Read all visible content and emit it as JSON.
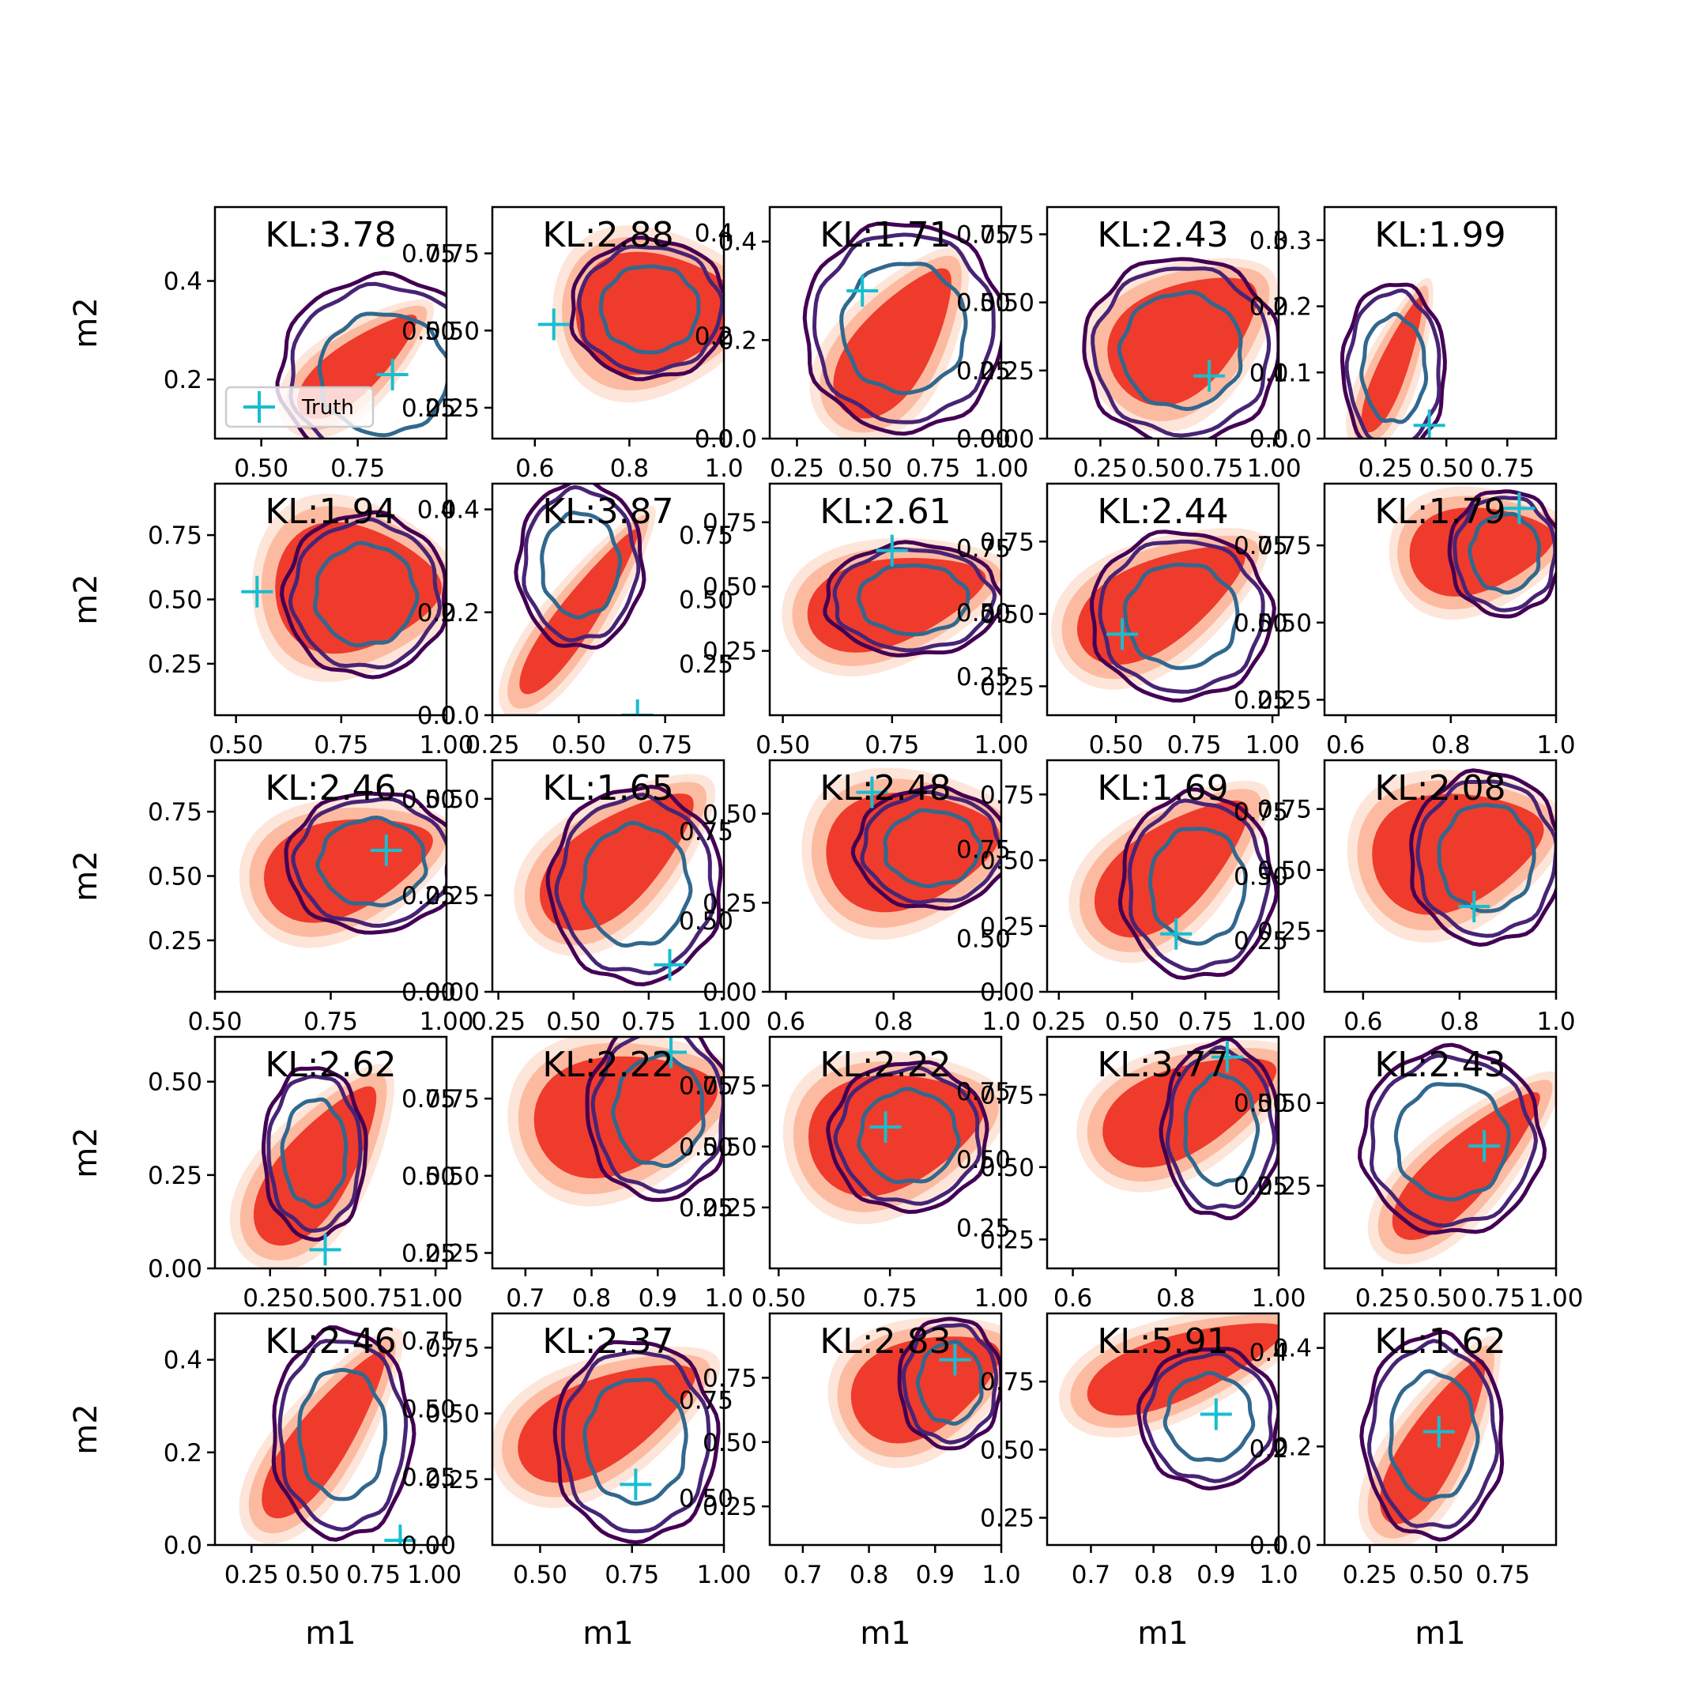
{
  "colors": {
    "posterior_fill": [
      "#fee5d9",
      "#fcbba1",
      "#ef3b2c",
      "#cb181d"
    ],
    "truth_contours": [
      "#440154",
      "#482475",
      "#31688e"
    ],
    "truth_marker": "#17becf",
    "axes": "#000000"
  },
  "chart_data": {
    "type": "contour-grid",
    "rows": 5,
    "cols": 5,
    "xlabel": "m1",
    "ylabel": "m2",
    "legend": {
      "label": "Truth",
      "marker": "+",
      "placement": "lower-left of first panel"
    },
    "panels": [
      {
        "kl": "KL:3.78",
        "xticks": [
          "0.50",
          "0.75"
        ],
        "xlim": [
          0.38,
          0.98
        ],
        "yticks": [
          "0.2",
          "0.4"
        ],
        "ylim": [
          0.08,
          0.55
        ],
        "rticks": [
          "0.25",
          "0.50",
          "0.75"
        ],
        "rlim": [
          0.15,
          0.9
        ],
        "truth": [
          0.84,
          0.21
        ],
        "fill": {
          "cx": 0.62,
          "cy": 0.32,
          "angle": -40,
          "rx": 0.36,
          "ry": 0.12
        },
        "ring": {
          "cx": 0.73,
          "cy": 0.28,
          "rx": 0.45,
          "ry": 0.42
        }
      },
      {
        "kl": "KL:2.88",
        "xticks": [
          "0.6",
          "0.8",
          "1.0"
        ],
        "xlim": [
          0.51,
          1.0
        ],
        "yticks": [
          "0.25",
          "0.50",
          "0.75"
        ],
        "ylim": [
          0.15,
          0.9
        ],
        "rticks": [
          "0.0",
          "0.2",
          "0.4"
        ],
        "rlim": [
          0.0,
          0.45
        ],
        "truth": [
          0.64,
          0.52
        ],
        "fill": {
          "cx": 0.72,
          "cy": 0.55,
          "angle": -5,
          "rx": 0.4,
          "ry": 0.28
        },
        "ring": {
          "cx": 0.68,
          "cy": 0.56,
          "rx": 0.34,
          "ry": 0.3
        }
      },
      {
        "kl": "KL:1.71",
        "xticks": [
          "0.25",
          "0.50",
          "0.75",
          "1.00"
        ],
        "xlim": [
          0.15,
          1.0
        ],
        "yticks": [
          "0.0",
          "0.2",
          "0.4"
        ],
        "ylim": [
          0.0,
          0.47
        ],
        "rticks": [
          "0.00",
          "0.25",
          "0.50",
          "0.75"
        ],
        "rlim": [
          0.0,
          0.85
        ],
        "truth": [
          0.49,
          0.3
        ],
        "fill": {
          "cx": 0.55,
          "cy": 0.42,
          "angle": -55,
          "rx": 0.42,
          "ry": 0.18
        },
        "ring": {
          "cx": 0.58,
          "cy": 0.48,
          "rx": 0.43,
          "ry": 0.45
        }
      },
      {
        "kl": "KL:2.43",
        "xticks": [
          "0.25",
          "0.50",
          "0.75",
          "1.00"
        ],
        "xlim": [
          0.02,
          1.02
        ],
        "yticks": [
          "0.00",
          "0.25",
          "0.50",
          "0.75"
        ],
        "ylim": [
          0.0,
          0.85
        ],
        "rticks": [
          "0.0",
          "0.1",
          "0.2",
          "0.3"
        ],
        "rlim": [
          0.0,
          0.35
        ],
        "truth": [
          0.72,
          0.23
        ],
        "fill": {
          "cx": 0.6,
          "cy": 0.45,
          "angle": -35,
          "rx": 0.4,
          "ry": 0.25
        },
        "ring": {
          "cx": 0.58,
          "cy": 0.38,
          "rx": 0.42,
          "ry": 0.4
        }
      },
      {
        "kl": "KL:1.99",
        "xticks": [
          "0.25",
          "0.50",
          "0.75"
        ],
        "xlim": [
          0.0,
          0.95
        ],
        "yticks": [
          "0.0",
          "0.1",
          "0.2",
          "0.3"
        ],
        "ylim": [
          0.0,
          0.35
        ],
        "rticks": [],
        "rlim": [
          0,
          1
        ],
        "truth": [
          0.43,
          0.02
        ],
        "fill": {
          "cx": 0.3,
          "cy": 0.32,
          "angle": -68,
          "rx": 0.35,
          "ry": 0.07
        },
        "ring": {
          "cx": 0.3,
          "cy": 0.3,
          "rx": 0.22,
          "ry": 0.37
        }
      },
      {
        "kl": "KL:1.94",
        "xticks": [
          "0.50",
          "0.75",
          "1.00"
        ],
        "xlim": [
          0.45,
          1.0
        ],
        "yticks": [
          "0.25",
          "0.50",
          "0.75"
        ],
        "ylim": [
          0.05,
          0.95
        ],
        "rticks": [
          "0.0",
          "0.2",
          "0.4"
        ],
        "rlim": [
          0.0,
          0.45
        ],
        "truth": [
          0.55,
          0.53
        ],
        "fill": {
          "cx": 0.62,
          "cy": 0.55,
          "angle": 0,
          "rx": 0.4,
          "ry": 0.3
        },
        "ring": {
          "cx": 0.65,
          "cy": 0.52,
          "rx": 0.35,
          "ry": 0.35
        }
      },
      {
        "kl": "KL:3.87",
        "xticks": [
          "0.25",
          "0.50",
          "0.75"
        ],
        "xlim": [
          0.25,
          0.92
        ],
        "yticks": [
          "0.0",
          "0.2",
          "0.4"
        ],
        "ylim": [
          0.0,
          0.45
        ],
        "rticks": [
          "0.25",
          "0.50",
          "0.75"
        ],
        "rlim": [
          0.05,
          0.95
        ],
        "truth": [
          0.67,
          0.0
        ],
        "fill": {
          "cx": 0.38,
          "cy": 0.45,
          "angle": -55,
          "rx": 0.48,
          "ry": 0.09
        },
        "ring": {
          "cx": 0.38,
          "cy": 0.65,
          "rx": 0.27,
          "ry": 0.36
        }
      },
      {
        "kl": "KL:2.61",
        "xticks": [
          "0.50",
          "0.75",
          "1.00"
        ],
        "xlim": [
          0.47,
          1.0
        ],
        "yticks": [
          "0.25",
          "0.50",
          "0.75"
        ],
        "ylim": [
          0.0,
          0.9
        ],
        "rticks": [
          "0.25",
          "0.50",
          "0.75"
        ],
        "rlim": [
          0.1,
          1.0
        ],
        "truth": [
          0.75,
          0.64
        ],
        "fill": {
          "cx": 0.55,
          "cy": 0.5,
          "angle": -15,
          "rx": 0.44,
          "ry": 0.2
        },
        "ring": {
          "cx": 0.62,
          "cy": 0.5,
          "rx": 0.38,
          "ry": 0.24
        }
      },
      {
        "kl": "KL:2.44",
        "xticks": [
          "0.50",
          "0.75",
          "1.00"
        ],
        "xlim": [
          0.28,
          1.02
        ],
        "yticks": [
          "0.25",
          "0.50",
          "0.75"
        ],
        "ylim": [
          0.15,
          0.95
        ],
        "rticks": [
          "0.25",
          "0.50",
          "0.75"
        ],
        "rlim": [
          0.2,
          0.95
        ],
        "truth": [
          0.52,
          0.43
        ],
        "fill": {
          "cx": 0.5,
          "cy": 0.5,
          "angle": -30,
          "rx": 0.45,
          "ry": 0.2
        },
        "ring": {
          "cx": 0.58,
          "cy": 0.43,
          "rx": 0.39,
          "ry": 0.36
        }
      },
      {
        "kl": "KL:1.79",
        "xticks": [
          "0.6",
          "0.8",
          "1.0"
        ],
        "xlim": [
          0.56,
          1.0
        ],
        "yticks": [
          "0.25",
          "0.50",
          "0.75"
        ],
        "ylim": [
          0.2,
          0.95
        ],
        "rticks": [],
        "rlim": [
          0,
          1
        ],
        "truth": [
          0.93,
          0.87
        ],
        "fill": {
          "cx": 0.68,
          "cy": 0.72,
          "angle": -10,
          "rx": 0.35,
          "ry": 0.2
        },
        "ring": {
          "cx": 0.78,
          "cy": 0.7,
          "rx": 0.24,
          "ry": 0.27
        }
      },
      {
        "kl": "KL:2.46",
        "xticks": [
          "0.50",
          "0.75",
          "1.00"
        ],
        "xlim": [
          0.5,
          1.0
        ],
        "yticks": [
          "0.25",
          "0.50",
          "0.75"
        ],
        "ylim": [
          0.05,
          0.95
        ],
        "rticks": [
          "0.00",
          "0.25",
          "0.50"
        ],
        "rlim": [
          0.0,
          0.6
        ],
        "truth": [
          0.87,
          0.6
        ],
        "fill": {
          "cx": 0.58,
          "cy": 0.55,
          "angle": -18,
          "rx": 0.42,
          "ry": 0.22
        },
        "ring": {
          "cx": 0.68,
          "cy": 0.56,
          "rx": 0.37,
          "ry": 0.3
        }
      },
      {
        "kl": "KL:1.65",
        "xticks": [
          "0.25",
          "0.50",
          "0.75",
          "1.00"
        ],
        "xlim": [
          0.23,
          1.0
        ],
        "yticks": [
          "0.00",
          "0.25",
          "0.50"
        ],
        "ylim": [
          0.0,
          0.6
        ],
        "rticks": [
          "0.50",
          "0.75"
        ],
        "rlim": [
          0.3,
          0.95
        ],
        "truth": [
          0.82,
          0.07
        ],
        "fill": {
          "cx": 0.55,
          "cy": 0.58,
          "angle": -40,
          "rx": 0.45,
          "ry": 0.2
        },
        "ring": {
          "cx": 0.62,
          "cy": 0.46,
          "rx": 0.37,
          "ry": 0.42
        }
      },
      {
        "kl": "KL:2.48",
        "xticks": [
          "0.6",
          "0.8",
          "1.0"
        ],
        "xlim": [
          0.57,
          1.0
        ],
        "yticks": [
          "0.00",
          "0.25",
          "0.50"
        ],
        "ylim": [
          0.0,
          0.65
        ],
        "rticks": [
          "0.50",
          "0.75"
        ],
        "rlim": [
          0.35,
          1.0
        ],
        "truth": [
          0.76,
          0.56
        ],
        "fill": {
          "cx": 0.62,
          "cy": 0.62,
          "angle": -10,
          "rx": 0.42,
          "ry": 0.27
        },
        "ring": {
          "cx": 0.7,
          "cy": 0.62,
          "rx": 0.33,
          "ry": 0.26
        }
      },
      {
        "kl": "KL:1.69",
        "xticks": [
          "0.25",
          "0.50",
          "0.75",
          "1.00"
        ],
        "xlim": [
          0.21,
          1.0
        ],
        "yticks": [
          "0.00",
          "0.25",
          "0.50",
          "0.75"
        ],
        "ylim": [
          0.0,
          0.88
        ],
        "rticks": [
          "0.25",
          "0.50",
          "0.75"
        ],
        "rlim": [
          0.05,
          0.95
        ],
        "truth": [
          0.65,
          0.22
        ],
        "fill": {
          "cx": 0.55,
          "cy": 0.55,
          "angle": -40,
          "rx": 0.45,
          "ry": 0.2
        },
        "ring": {
          "cx": 0.65,
          "cy": 0.46,
          "rx": 0.33,
          "ry": 0.4
        }
      },
      {
        "kl": "KL:2.08",
        "xticks": [
          "0.6",
          "0.8",
          "1.0"
        ],
        "xlim": [
          0.52,
          1.0
        ],
        "yticks": [
          "0.25",
          "0.50",
          "0.75"
        ],
        "ylim": [
          0.0,
          0.95
        ],
        "rticks": [],
        "rlim": [
          0,
          1
        ],
        "truth": [
          0.83,
          0.35
        ],
        "fill": {
          "cx": 0.58,
          "cy": 0.62,
          "angle": -15,
          "rx": 0.42,
          "ry": 0.27
        },
        "ring": {
          "cx": 0.7,
          "cy": 0.58,
          "rx": 0.33,
          "ry": 0.37
        }
      },
      {
        "kl": "KL:2.62",
        "xticks": [
          "0.25",
          "0.50",
          "0.75",
          "1.00"
        ],
        "xlim": [
          0.0,
          1.05
        ],
        "yticks": [
          "0.00",
          "0.25",
          "0.50"
        ],
        "ylim": [
          0.0,
          0.62
        ],
        "rticks": [
          "0.25",
          "0.50",
          "0.75"
        ],
        "rlim": [
          0.2,
          0.95
        ],
        "truth": [
          0.5,
          0.05
        ],
        "fill": {
          "cx": 0.45,
          "cy": 0.45,
          "angle": -55,
          "rx": 0.45,
          "ry": 0.17
        },
        "ring": {
          "cx": 0.43,
          "cy": 0.5,
          "rx": 0.22,
          "ry": 0.37
        }
      },
      {
        "kl": "KL:2.22",
        "xticks": [
          "0.7",
          "0.8",
          "0.9",
          "1.0"
        ],
        "xlim": [
          0.65,
          1.0
        ],
        "yticks": [
          "0.25",
          "0.50",
          "0.75"
        ],
        "ylim": [
          0.2,
          0.95
        ],
        "rticks": [
          "0.25",
          "0.50",
          "0.75"
        ],
        "rlim": [
          0.0,
          0.95
        ],
        "truth": [
          0.92,
          0.9
        ],
        "fill": {
          "cx": 0.58,
          "cy": 0.68,
          "angle": -15,
          "rx": 0.45,
          "ry": 0.27
        },
        "ring": {
          "cx": 0.72,
          "cy": 0.68,
          "rx": 0.31,
          "ry": 0.38
        }
      },
      {
        "kl": "KL:2.22",
        "xticks": [
          "0.50",
          "0.75",
          "1.00"
        ],
        "xlim": [
          0.48,
          1.0
        ],
        "yticks": [
          "0.25",
          "0.50",
          "0.75"
        ],
        "ylim": [
          0.0,
          0.95
        ],
        "rticks": [
          "0.25",
          "0.50",
          "0.75"
        ],
        "rlim": [
          0.1,
          0.95
        ],
        "truth": [
          0.74,
          0.58
        ],
        "fill": {
          "cx": 0.55,
          "cy": 0.6,
          "angle": -15,
          "rx": 0.43,
          "ry": 0.27
        },
        "ring": {
          "cx": 0.6,
          "cy": 0.57,
          "rx": 0.34,
          "ry": 0.32
        }
      },
      {
        "kl": "KL:3.77",
        "xticks": [
          "0.6",
          "0.8",
          "1.00"
        ],
        "xlim": [
          0.55,
          1.0
        ],
        "yticks": [
          "0.25",
          "0.50",
          "0.75"
        ],
        "ylim": [
          0.15,
          0.95
        ],
        "rticks": [
          "0.25",
          "0.50"
        ],
        "rlim": [
          0.0,
          0.7
        ],
        "truth": [
          0.9,
          0.88
        ],
        "fill": {
          "cx": 0.62,
          "cy": 0.7,
          "angle": -25,
          "rx": 0.45,
          "ry": 0.2
        },
        "ring": {
          "cx": 0.75,
          "cy": 0.6,
          "rx": 0.25,
          "ry": 0.38
        }
      },
      {
        "kl": "KL:2.43",
        "xticks": [
          "0.25",
          "0.50",
          "0.75",
          "1.00"
        ],
        "xlim": [
          0.0,
          1.0
        ],
        "yticks": [
          "0.25",
          "0.50"
        ],
        "ylim": [
          0.0,
          0.7
        ],
        "rticks": [],
        "rlim": [
          0,
          1
        ],
        "truth": [
          0.69,
          0.37
        ],
        "fill": {
          "cx": 0.62,
          "cy": 0.45,
          "angle": -45,
          "rx": 0.48,
          "ry": 0.14
        },
        "ring": {
          "cx": 0.55,
          "cy": 0.55,
          "rx": 0.39,
          "ry": 0.4
        }
      },
      {
        "kl": "KL:2.46",
        "xticks": [
          "0.25",
          "0.50",
          "0.75",
          "1.00"
        ],
        "xlim": [
          0.1,
          1.05
        ],
        "yticks": [
          "0.0",
          "0.2",
          "0.4"
        ],
        "ylim": [
          0.0,
          0.5
        ],
        "rticks": [
          "0.00",
          "0.25",
          "0.50",
          "0.75"
        ],
        "rlim": [
          0.0,
          0.85
        ],
        "truth": [
          0.86,
          0.01
        ],
        "fill": {
          "cx": 0.48,
          "cy": 0.48,
          "angle": -55,
          "rx": 0.48,
          "ry": 0.13
        },
        "ring": {
          "cx": 0.55,
          "cy": 0.48,
          "rx": 0.3,
          "ry": 0.45
        }
      },
      {
        "kl": "KL:2.37",
        "xticks": [
          "0.50",
          "0.75",
          "1.00"
        ],
        "xlim": [
          0.37,
          1.0
        ],
        "yticks": [
          "0.25",
          "0.50",
          "0.75"
        ],
        "ylim": [
          0.0,
          0.88
        ],
        "rticks": [
          "0.50",
          "0.75"
        ],
        "rlim": [
          0.38,
          0.97
        ],
        "truth": [
          0.76,
          0.23
        ],
        "fill": {
          "cx": 0.5,
          "cy": 0.55,
          "angle": -28,
          "rx": 0.47,
          "ry": 0.2
        },
        "ring": {
          "cx": 0.62,
          "cy": 0.45,
          "rx": 0.35,
          "ry": 0.43
        }
      },
      {
        "kl": "KL:2.83",
        "xticks": [
          "0.7",
          "0.8",
          "0.9",
          "1.0"
        ],
        "xlim": [
          0.65,
          1.0
        ],
        "yticks": [
          "0.25",
          "0.50",
          "0.75"
        ],
        "ylim": [
          0.1,
          1.0
        ],
        "rticks": [],
        "rlim": [
          0,
          1
        ],
        "truth": [
          0.93,
          0.82
        ],
        "fill": {
          "cx": 0.68,
          "cy": 0.7,
          "angle": -25,
          "rx": 0.38,
          "ry": 0.22
        },
        "ring": {
          "cx": 0.78,
          "cy": 0.7,
          "rx": 0.22,
          "ry": 0.28
        }
      },
      {
        "kl": "KL:5.91",
        "xticks": [
          "0.7",
          "0.8",
          "0.9",
          "1.0"
        ],
        "xlim": [
          0.63,
          1.0
        ],
        "yticks": [
          "0.25",
          "0.50",
          "0.75"
        ],
        "ylim": [
          0.15,
          1.0
        ],
        "rticks": [
          "0.0",
          "0.2",
          "0.4"
        ],
        "rlim": [
          0.0,
          0.48
        ],
        "truth": [
          0.9,
          0.63
        ],
        "fill": {
          "cx": 0.6,
          "cy": 0.78,
          "angle": -20,
          "rx": 0.5,
          "ry": 0.15
        },
        "ring": {
          "cx": 0.7,
          "cy": 0.55,
          "rx": 0.3,
          "ry": 0.3
        }
      },
      {
        "kl": "KL:1.62",
        "xticks": [
          "0.25",
          "0.50",
          "0.75"
        ],
        "xlim": [
          0.08,
          0.95
        ],
        "yticks": [
          "0.0",
          "0.2",
          "0.4"
        ],
        "ylim": [
          0.0,
          0.47
        ],
        "rticks": [],
        "rlim": [
          0,
          1
        ],
        "truth": [
          0.51,
          0.23
        ],
        "fill": {
          "cx": 0.48,
          "cy": 0.45,
          "angle": -60,
          "rx": 0.45,
          "ry": 0.13
        },
        "ring": {
          "cx": 0.47,
          "cy": 0.47,
          "rx": 0.3,
          "ry": 0.44
        }
      }
    ]
  }
}
